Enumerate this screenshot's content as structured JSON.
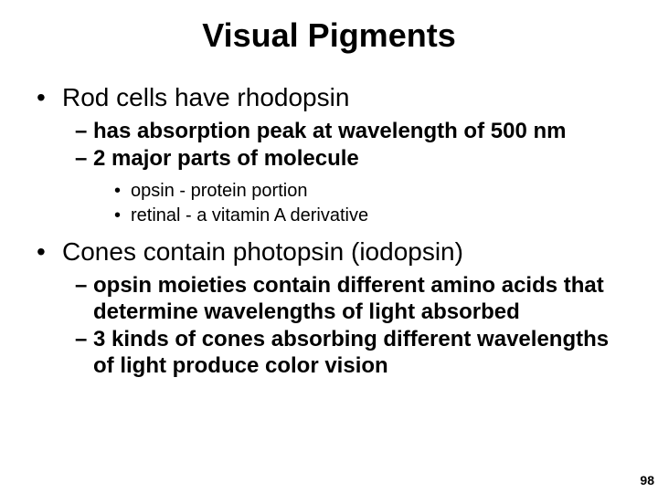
{
  "title": "Visual Pigments",
  "bullets": {
    "b1": "Rod cells have rhodopsin",
    "b1_1": "has absorption peak at wavelength of 500 nm",
    "b1_2": "2 major parts of molecule",
    "b1_2_1": "opsin - protein portion",
    "b1_2_2": "retinal - a vitamin A derivative",
    "b2": "Cones contain photopsin (iodopsin)",
    "b2_1": "opsin moieties contain different amino acids that determine wavelengths of light absorbed",
    "b2_2": "3 kinds of cones absorbing different wavelengths of light produce color vision"
  },
  "page_number": "98",
  "styling": {
    "background_color": "#ffffff",
    "text_color": "#000000",
    "title_fontsize": 36,
    "level1_fontsize": 28,
    "level2_fontsize": 24,
    "level3_fontsize": 20,
    "page_number_fontsize": 14,
    "font_family": "Arial"
  }
}
